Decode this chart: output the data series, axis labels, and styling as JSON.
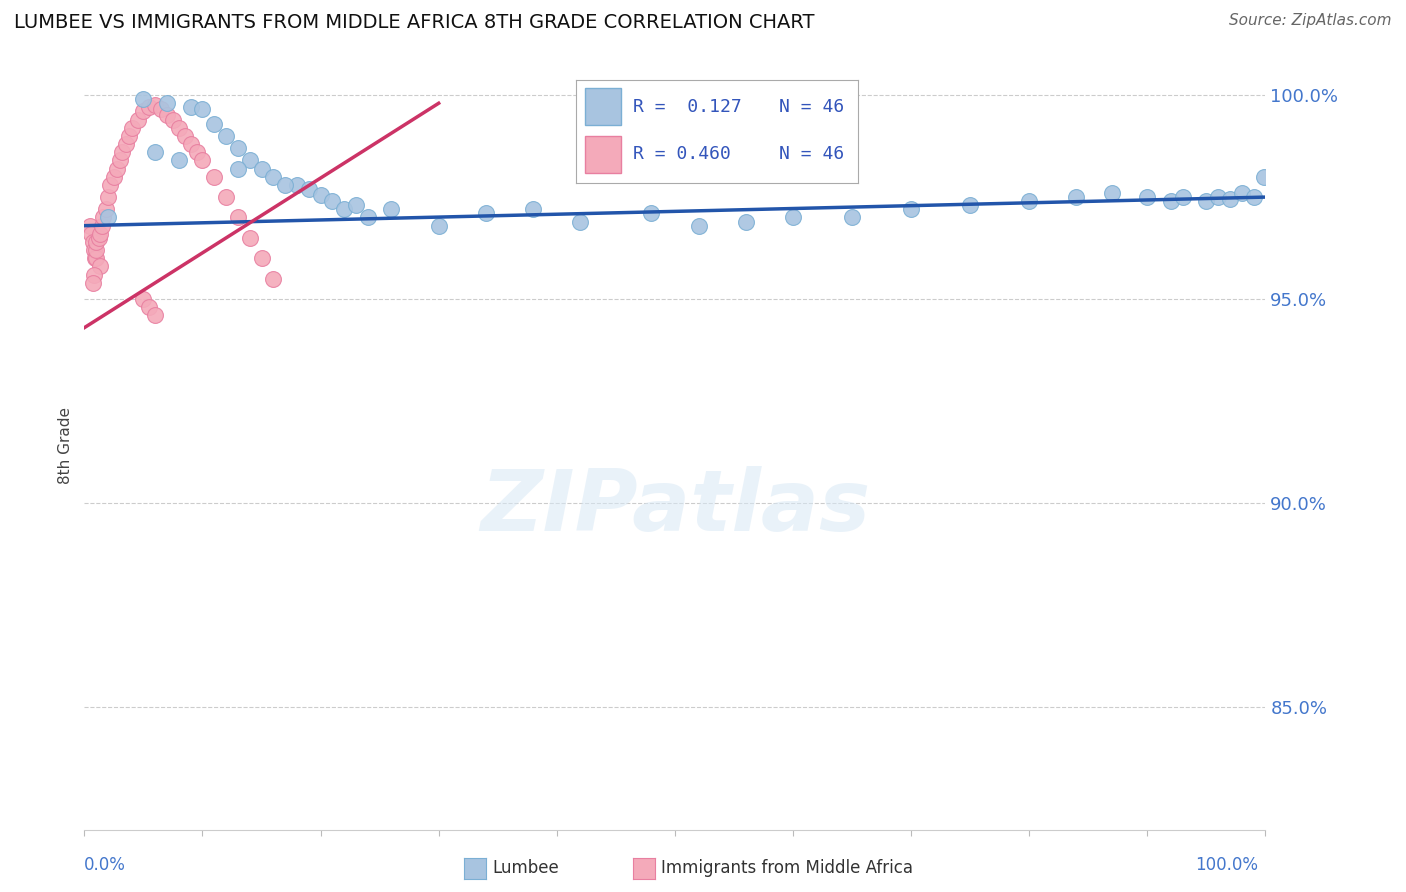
{
  "title": "LUMBEE VS IMMIGRANTS FROM MIDDLE AFRICA 8TH GRADE CORRELATION CHART",
  "source": "Source: ZipAtlas.com",
  "ylabel": "8th Grade",
  "xlim": [
    0.0,
    1.0
  ],
  "ylim": [
    0.82,
    1.008
  ],
  "yticks": [
    0.85,
    0.9,
    0.95,
    1.0
  ],
  "ytick_labels": [
    "85.0%",
    "90.0%",
    "95.0%",
    "100.0%"
  ],
  "legend_r_blue": "R =  0.127",
  "legend_n_blue": "N = 46",
  "legend_r_pink": "R = 0.460",
  "legend_n_pink": "N = 46",
  "blue_color": "#A8C4E0",
  "blue_edge": "#7BAFD4",
  "pink_color": "#F4AABA",
  "pink_edge": "#E87FA0",
  "line_blue": "#2255AA",
  "line_pink": "#CC3366",
  "blue_x": [
    0.02,
    0.05,
    0.07,
    0.09,
    0.1,
    0.11,
    0.12,
    0.13,
    0.14,
    0.15,
    0.16,
    0.18,
    0.19,
    0.2,
    0.21,
    0.22,
    0.24,
    0.26,
    0.3,
    0.34,
    0.38,
    0.42,
    0.48,
    0.52,
    0.56,
    0.6,
    0.65,
    0.7,
    0.75,
    0.8,
    0.84,
    0.87,
    0.9,
    0.92,
    0.93,
    0.95,
    0.96,
    0.97,
    0.98,
    0.99,
    0.999,
    0.13,
    0.17,
    0.23,
    0.08,
    0.06
  ],
  "blue_y": [
    0.97,
    0.999,
    0.998,
    0.997,
    0.9965,
    0.993,
    0.99,
    0.987,
    0.984,
    0.982,
    0.98,
    0.978,
    0.977,
    0.9755,
    0.974,
    0.972,
    0.97,
    0.972,
    0.968,
    0.971,
    0.972,
    0.969,
    0.971,
    0.968,
    0.969,
    0.97,
    0.97,
    0.972,
    0.973,
    0.974,
    0.975,
    0.976,
    0.975,
    0.974,
    0.975,
    0.974,
    0.975,
    0.9745,
    0.976,
    0.975,
    0.98,
    0.982,
    0.978,
    0.973,
    0.984,
    0.986
  ],
  "pink_x": [
    0.005,
    0.006,
    0.007,
    0.008,
    0.009,
    0.01,
    0.01,
    0.01,
    0.012,
    0.013,
    0.015,
    0.016,
    0.018,
    0.02,
    0.022,
    0.025,
    0.028,
    0.03,
    0.032,
    0.035,
    0.038,
    0.04,
    0.045,
    0.05,
    0.055,
    0.06,
    0.065,
    0.07,
    0.075,
    0.08,
    0.085,
    0.09,
    0.095,
    0.1,
    0.11,
    0.12,
    0.13,
    0.14,
    0.15,
    0.16,
    0.05,
    0.055,
    0.06,
    0.013,
    0.008,
    0.007
  ],
  "pink_y": [
    0.968,
    0.966,
    0.964,
    0.962,
    0.96,
    0.96,
    0.962,
    0.964,
    0.965,
    0.966,
    0.968,
    0.97,
    0.972,
    0.975,
    0.978,
    0.98,
    0.982,
    0.984,
    0.986,
    0.988,
    0.99,
    0.992,
    0.994,
    0.996,
    0.997,
    0.9975,
    0.9965,
    0.995,
    0.994,
    0.992,
    0.99,
    0.988,
    0.986,
    0.984,
    0.98,
    0.975,
    0.97,
    0.965,
    0.96,
    0.955,
    0.95,
    0.948,
    0.946,
    0.958,
    0.956,
    0.954
  ],
  "blue_line_x": [
    0.0,
    1.0
  ],
  "blue_line_y": [
    0.968,
    0.975
  ],
  "pink_line_x": [
    0.0,
    0.3
  ],
  "pink_line_y": [
    0.943,
    0.998
  ]
}
